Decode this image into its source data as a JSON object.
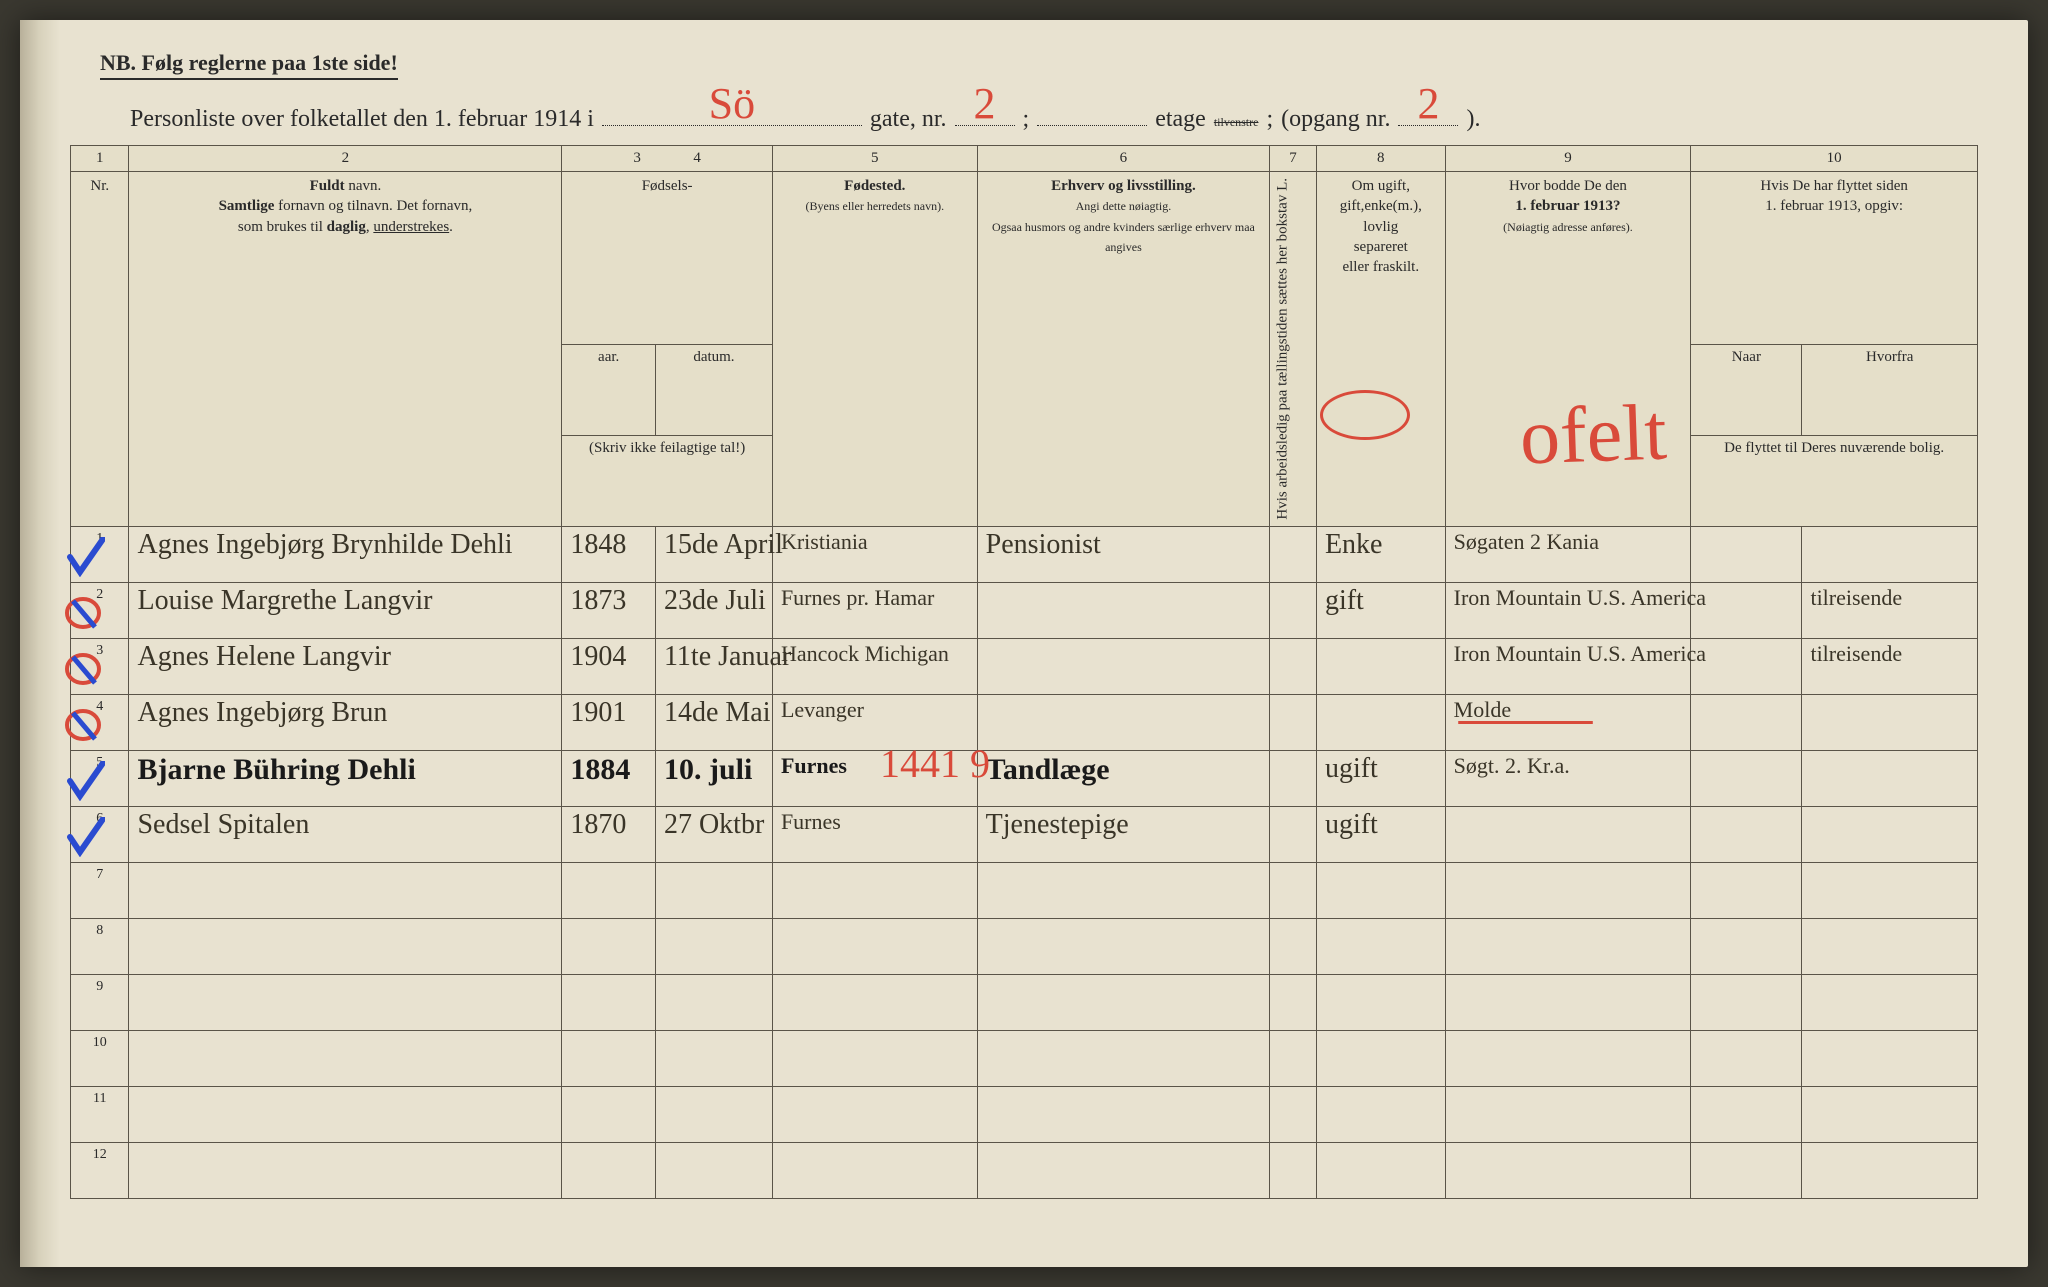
{
  "header": {
    "nb": "NB.  Følg reglerne paa 1ste side!",
    "title_prefix": "Personliste over folketallet den 1. februar 1914 i",
    "street_hand": "Sö",
    "gate_label": "gate, nr.",
    "gate_nr": "2",
    "semicolon": ";",
    "etage_label": "etage",
    "etage_strike": "tilvenstre",
    "etage_semicolon": ";",
    "opgang_label": "(opgang nr.",
    "opgang_nr": "2",
    "close": ")."
  },
  "columns": {
    "nums": [
      "1",
      "2",
      "3",
      "4",
      "5",
      "6",
      "7",
      "8",
      "9",
      "10"
    ],
    "nr": "Nr.",
    "fuldt_navn_bold": "Fuldt",
    "fuldt_navn_rest": " navn.",
    "navn_sub1": "Samtlige",
    "navn_sub2": " fornavn og tilnavn.  Det fornavn,",
    "navn_sub3": "som brukes til ",
    "navn_daglig": "daglig",
    "navn_sub4": ", ",
    "navn_under": "understrekes",
    "navn_sub5": ".",
    "fodsels": "Fødsels-",
    "aar": "aar.",
    "datum": "datum.",
    "skriv_ikke": "(Skriv ikke feilagtige tal!)",
    "fodested": "Fødested.",
    "fodested_sub": "(Byens eller herredets navn).",
    "erhverv_bold": "Erhverv og livsstilling.",
    "erhverv_sub1": "Angi dette nøiagtig.",
    "erhverv_sub2": "Ogsaa husmors og andre kvinders særlige erhverv maa angives",
    "col7": "Hvis arbeidsledig paa tællingstiden sættes her bokstav L.",
    "col8_line1": "Om ugift,",
    "col8_line2": "gift,enke(m.),",
    "col8_line3": "lovlig",
    "col8_line4": "separeret",
    "col8_line5": "eller fraskilt.",
    "col9_line1": "Hvor bodde De den",
    "col9_bold": "1. februar 1913?",
    "col9_sub": "(Nøiagtig adresse anføres).",
    "col10_line1": "Hvis De har flyttet siden",
    "col10_line2": "1. februar 1913, opgiv:",
    "col10_naar": "Naar",
    "col10_hvorfra": "Hvorfra",
    "col10_sub": "De flyttet til Deres nuværende bolig."
  },
  "rows": [
    {
      "nr": "1",
      "navn": "Agnes Ingebjørg Brynhilde Dehli",
      "aar": "1848",
      "datum": "15de April",
      "fodested": "Kristiania",
      "erhverv": "Pensionist",
      "col7": "",
      "civil": "Enke",
      "addr1913": "Søgaten 2 Kania",
      "naar": "",
      "hvorfra": "",
      "blue": true
    },
    {
      "nr": "2",
      "navn": "Louise Margrethe Langvir",
      "aar": "1873",
      "datum": "23de Juli",
      "fodested": "Furnes pr. Hamar",
      "erhverv": "",
      "col7": "",
      "civil": "gift",
      "addr1913": "Iron Mountain U.S. America",
      "naar": "",
      "hvorfra": "tilreisende",
      "blue": false,
      "redMark": true
    },
    {
      "nr": "3",
      "navn": "Agnes Helene Langvir",
      "aar": "1904",
      "datum": "11te Januar",
      "fodested": "Hancock Michigan",
      "erhverv": "",
      "col7": "",
      "civil": "",
      "addr1913": "Iron Mountain U.S. America",
      "naar": "",
      "hvorfra": "tilreisende",
      "blue": false,
      "redMark": true
    },
    {
      "nr": "4",
      "navn": "Agnes Ingebjørg Brun",
      "aar": "1901",
      "datum": "14de Mai",
      "fodested": "Levanger",
      "erhverv": "",
      "col7": "",
      "civil": "",
      "addr1913": "Molde",
      "naar": "",
      "hvorfra": "",
      "blue": false,
      "redMark": true,
      "addrStrike": true
    },
    {
      "nr": "5",
      "navn": "Bjarne Bühring Dehli",
      "aar": "1884",
      "datum": "10. juli",
      "fodested": "Furnes",
      "erhverv": "Tandlæge",
      "col7": "",
      "civil": "ugift",
      "addr1913": "Søgt. 2. Kr.a.",
      "naar": "",
      "hvorfra": "",
      "blue": true,
      "dark": true
    },
    {
      "nr": "6",
      "navn": "Sedsel Spitalen",
      "aar": "1870",
      "datum": "27 Oktbr",
      "fodested": "Furnes",
      "erhverv": "Tjenestepige",
      "col7": "",
      "civil": "ugift",
      "addr1913": "",
      "naar": "",
      "hvorfra": "",
      "blue": true
    },
    {
      "nr": "7"
    },
    {
      "nr": "8"
    },
    {
      "nr": "9"
    },
    {
      "nr": "10"
    },
    {
      "nr": "11"
    },
    {
      "nr": "12"
    }
  ],
  "overlay": {
    "num1449": "1441 9",
    "ofelt": "ofelt"
  },
  "colors": {
    "paper": "#e8e2d0",
    "ink": "#2a2a2a",
    "handInk": "#3a3528",
    "red": "#d94a3a",
    "blue": "#2a4bd0",
    "border": "#5a5448"
  },
  "colWidths": {
    "nr": 50,
    "navn": 370,
    "aar": 80,
    "datum": 100,
    "fodested": 175,
    "erhverv": 250,
    "col7": 40,
    "civil": 110,
    "addr": 210,
    "naar": 95,
    "hvorfra": 150
  }
}
